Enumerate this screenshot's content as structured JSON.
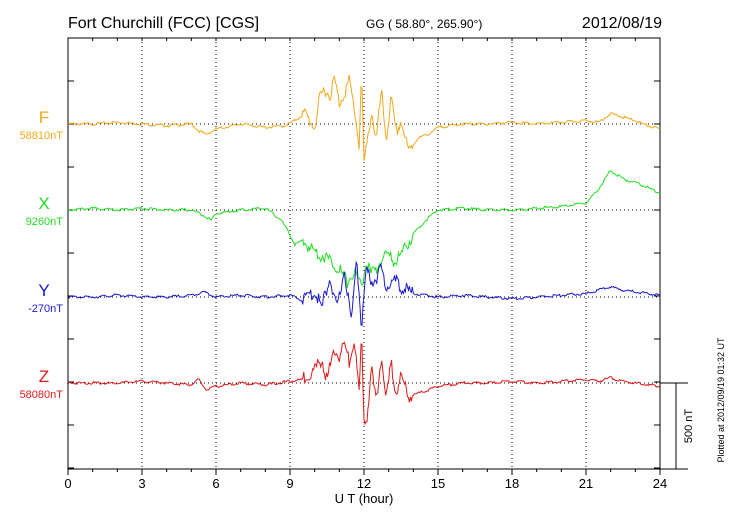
{
  "header": {
    "station": "Fort Churchill (FCC)  [CGS]",
    "coords": "GG ( 58.80°, 265.90°)",
    "date": "2012/08/19"
  },
  "footer": {
    "plotted": "Plotted at 2012/09/19 01:32 UT"
  },
  "scale_bar": {
    "label": "500 nT",
    "value_nT": 500
  },
  "colors": {
    "F": "#f2a81c",
    "X": "#22dd22",
    "Y": "#1a1acc",
    "Z": "#e01818"
  },
  "chart_data": {
    "type": "line",
    "xlabel": "U T (hour)",
    "xlim": [
      0,
      24
    ],
    "xticks": [
      "0",
      "3",
      "6",
      "9",
      "12",
      "15",
      "18",
      "21",
      "24"
    ],
    "series": [
      {
        "name": "F",
        "baseline": "58810nT",
        "x": [
          0,
          1,
          2,
          3,
          4,
          5,
          5.3,
          5.6,
          6,
          7,
          8,
          8.8,
          9.2,
          9.6,
          10,
          10.2,
          10.4,
          10.6,
          10.8,
          11,
          11.2,
          11.4,
          11.6,
          11.8,
          11.9,
          12,
          12.1,
          12.3,
          12.5,
          12.7,
          12.9,
          13.1,
          13.3,
          13.5,
          13.8,
          14.2,
          14.6,
          15,
          16,
          17,
          18,
          19,
          20,
          21,
          21.5,
          22,
          22.5,
          23,
          23.5,
          24
        ],
        "y": [
          0,
          0,
          10,
          0,
          -10,
          0,
          -40,
          -60,
          -30,
          0,
          -20,
          -10,
          20,
          60,
          -20,
          140,
          210,
          160,
          260,
          120,
          180,
          250,
          100,
          -120,
          300,
          -220,
          -150,
          80,
          -100,
          190,
          -90,
          150,
          -60,
          20,
          -160,
          -80,
          -60,
          -20,
          0,
          0,
          10,
          0,
          10,
          20,
          10,
          60,
          40,
          20,
          -10,
          -30
        ]
      },
      {
        "name": "X",
        "baseline": "9260nT",
        "x": [
          0,
          1,
          2,
          3,
          4,
          5,
          5.5,
          5.8,
          6,
          7,
          8,
          8.6,
          8.9,
          9.2,
          9.5,
          10,
          10.5,
          11,
          11.3,
          11.6,
          11.9,
          12.1,
          12.3,
          12.6,
          12.9,
          13.2,
          13.5,
          14,
          14.5,
          15,
          16,
          17,
          18,
          19,
          20,
          21,
          21.5,
          22,
          22.5,
          23,
          23.5,
          24
        ],
        "y": [
          0,
          10,
          0,
          10,
          0,
          0,
          -30,
          -60,
          -20,
          0,
          10,
          -50,
          -120,
          -200,
          -180,
          -240,
          -280,
          -340,
          -420,
          -360,
          -440,
          -300,
          -380,
          -320,
          -250,
          -300,
          -260,
          -140,
          -60,
          0,
          10,
          0,
          0,
          10,
          20,
          40,
          120,
          230,
          180,
          160,
          130,
          100
        ]
      },
      {
        "name": "Y",
        "baseline": "-270nT",
        "x": [
          0,
          1,
          2,
          3,
          4,
          5,
          5.5,
          6,
          7,
          8,
          9,
          9.5,
          10,
          10.3,
          10.6,
          10.9,
          11.2,
          11.5,
          11.7,
          11.9,
          12.1,
          12.3,
          12.5,
          12.7,
          12.9,
          13.2,
          13.5,
          14,
          14.5,
          15,
          16,
          17,
          18,
          19,
          20,
          21,
          21.5,
          22,
          22.5,
          23,
          23.5,
          24
        ],
        "y": [
          0,
          0,
          10,
          0,
          0,
          10,
          30,
          0,
          10,
          0,
          10,
          -20,
          30,
          -60,
          120,
          -80,
          160,
          -150,
          240,
          -180,
          150,
          90,
          110,
          160,
          60,
          100,
          60,
          20,
          10,
          0,
          10,
          0,
          -10,
          0,
          10,
          20,
          40,
          60,
          40,
          30,
          20,
          10
        ]
      },
      {
        "name": "Z",
        "baseline": "58080nT",
        "x": [
          0,
          1,
          2,
          3,
          4,
          5,
          5.3,
          5.6,
          6,
          7,
          8,
          9,
          9.5,
          10,
          10.3,
          10.5,
          10.8,
          11,
          11.2,
          11.4,
          11.6,
          11.8,
          11.9,
          12,
          12.1,
          12.3,
          12.5,
          12.7,
          12.9,
          13.1,
          13.3,
          13.5,
          13.8,
          14.2,
          14.6,
          15,
          16,
          17,
          18,
          19,
          20,
          21,
          21.5,
          22,
          22.5,
          23,
          23.5,
          24
        ],
        "y": [
          0,
          0,
          0,
          10,
          0,
          -10,
          20,
          -40,
          -20,
          0,
          -10,
          10,
          20,
          80,
          140,
          20,
          200,
          150,
          230,
          120,
          260,
          -60,
          280,
          -180,
          -230,
          80,
          -120,
          160,
          -100,
          120,
          -60,
          40,
          -80,
          -60,
          -40,
          -20,
          0,
          0,
          10,
          0,
          10,
          20,
          10,
          30,
          10,
          0,
          -10,
          -20
        ]
      }
    ]
  }
}
